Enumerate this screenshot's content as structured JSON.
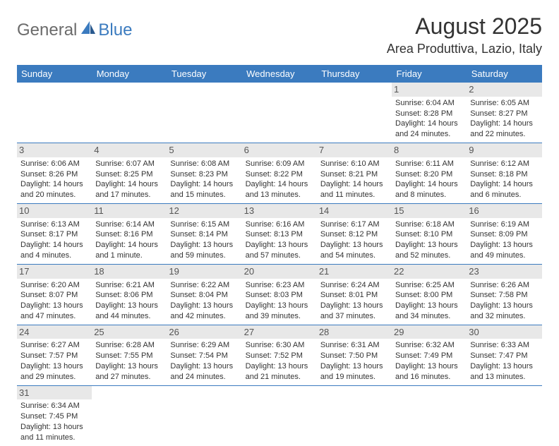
{
  "logo": {
    "general": "General",
    "blue": "Blue"
  },
  "title": "August 2025",
  "location": "Area Produttiva, Lazio, Italy",
  "colors": {
    "header_bg": "#3b7bbf",
    "header_text": "#ffffff",
    "daynum_bg": "#e8e8e8",
    "border": "#3b7bbf",
    "text": "#333333"
  },
  "weekdays": [
    "Sunday",
    "Monday",
    "Tuesday",
    "Wednesday",
    "Thursday",
    "Friday",
    "Saturday"
  ],
  "weeks": [
    [
      null,
      null,
      null,
      null,
      null,
      {
        "n": "1",
        "sunrise": "Sunrise: 6:04 AM",
        "sunset": "Sunset: 8:28 PM",
        "daylight": "Daylight: 14 hours and 24 minutes."
      },
      {
        "n": "2",
        "sunrise": "Sunrise: 6:05 AM",
        "sunset": "Sunset: 8:27 PM",
        "daylight": "Daylight: 14 hours and 22 minutes."
      }
    ],
    [
      {
        "n": "3",
        "sunrise": "Sunrise: 6:06 AM",
        "sunset": "Sunset: 8:26 PM",
        "daylight": "Daylight: 14 hours and 20 minutes."
      },
      {
        "n": "4",
        "sunrise": "Sunrise: 6:07 AM",
        "sunset": "Sunset: 8:25 PM",
        "daylight": "Daylight: 14 hours and 17 minutes."
      },
      {
        "n": "5",
        "sunrise": "Sunrise: 6:08 AM",
        "sunset": "Sunset: 8:23 PM",
        "daylight": "Daylight: 14 hours and 15 minutes."
      },
      {
        "n": "6",
        "sunrise": "Sunrise: 6:09 AM",
        "sunset": "Sunset: 8:22 PM",
        "daylight": "Daylight: 14 hours and 13 minutes."
      },
      {
        "n": "7",
        "sunrise": "Sunrise: 6:10 AM",
        "sunset": "Sunset: 8:21 PM",
        "daylight": "Daylight: 14 hours and 11 minutes."
      },
      {
        "n": "8",
        "sunrise": "Sunrise: 6:11 AM",
        "sunset": "Sunset: 8:20 PM",
        "daylight": "Daylight: 14 hours and 8 minutes."
      },
      {
        "n": "9",
        "sunrise": "Sunrise: 6:12 AM",
        "sunset": "Sunset: 8:18 PM",
        "daylight": "Daylight: 14 hours and 6 minutes."
      }
    ],
    [
      {
        "n": "10",
        "sunrise": "Sunrise: 6:13 AM",
        "sunset": "Sunset: 8:17 PM",
        "daylight": "Daylight: 14 hours and 4 minutes."
      },
      {
        "n": "11",
        "sunrise": "Sunrise: 6:14 AM",
        "sunset": "Sunset: 8:16 PM",
        "daylight": "Daylight: 14 hours and 1 minute."
      },
      {
        "n": "12",
        "sunrise": "Sunrise: 6:15 AM",
        "sunset": "Sunset: 8:14 PM",
        "daylight": "Daylight: 13 hours and 59 minutes."
      },
      {
        "n": "13",
        "sunrise": "Sunrise: 6:16 AM",
        "sunset": "Sunset: 8:13 PM",
        "daylight": "Daylight: 13 hours and 57 minutes."
      },
      {
        "n": "14",
        "sunrise": "Sunrise: 6:17 AM",
        "sunset": "Sunset: 8:12 PM",
        "daylight": "Daylight: 13 hours and 54 minutes."
      },
      {
        "n": "15",
        "sunrise": "Sunrise: 6:18 AM",
        "sunset": "Sunset: 8:10 PM",
        "daylight": "Daylight: 13 hours and 52 minutes."
      },
      {
        "n": "16",
        "sunrise": "Sunrise: 6:19 AM",
        "sunset": "Sunset: 8:09 PM",
        "daylight": "Daylight: 13 hours and 49 minutes."
      }
    ],
    [
      {
        "n": "17",
        "sunrise": "Sunrise: 6:20 AM",
        "sunset": "Sunset: 8:07 PM",
        "daylight": "Daylight: 13 hours and 47 minutes."
      },
      {
        "n": "18",
        "sunrise": "Sunrise: 6:21 AM",
        "sunset": "Sunset: 8:06 PM",
        "daylight": "Daylight: 13 hours and 44 minutes."
      },
      {
        "n": "19",
        "sunrise": "Sunrise: 6:22 AM",
        "sunset": "Sunset: 8:04 PM",
        "daylight": "Daylight: 13 hours and 42 minutes."
      },
      {
        "n": "20",
        "sunrise": "Sunrise: 6:23 AM",
        "sunset": "Sunset: 8:03 PM",
        "daylight": "Daylight: 13 hours and 39 minutes."
      },
      {
        "n": "21",
        "sunrise": "Sunrise: 6:24 AM",
        "sunset": "Sunset: 8:01 PM",
        "daylight": "Daylight: 13 hours and 37 minutes."
      },
      {
        "n": "22",
        "sunrise": "Sunrise: 6:25 AM",
        "sunset": "Sunset: 8:00 PM",
        "daylight": "Daylight: 13 hours and 34 minutes."
      },
      {
        "n": "23",
        "sunrise": "Sunrise: 6:26 AM",
        "sunset": "Sunset: 7:58 PM",
        "daylight": "Daylight: 13 hours and 32 minutes."
      }
    ],
    [
      {
        "n": "24",
        "sunrise": "Sunrise: 6:27 AM",
        "sunset": "Sunset: 7:57 PM",
        "daylight": "Daylight: 13 hours and 29 minutes."
      },
      {
        "n": "25",
        "sunrise": "Sunrise: 6:28 AM",
        "sunset": "Sunset: 7:55 PM",
        "daylight": "Daylight: 13 hours and 27 minutes."
      },
      {
        "n": "26",
        "sunrise": "Sunrise: 6:29 AM",
        "sunset": "Sunset: 7:54 PM",
        "daylight": "Daylight: 13 hours and 24 minutes."
      },
      {
        "n": "27",
        "sunrise": "Sunrise: 6:30 AM",
        "sunset": "Sunset: 7:52 PM",
        "daylight": "Daylight: 13 hours and 21 minutes."
      },
      {
        "n": "28",
        "sunrise": "Sunrise: 6:31 AM",
        "sunset": "Sunset: 7:50 PM",
        "daylight": "Daylight: 13 hours and 19 minutes."
      },
      {
        "n": "29",
        "sunrise": "Sunrise: 6:32 AM",
        "sunset": "Sunset: 7:49 PM",
        "daylight": "Daylight: 13 hours and 16 minutes."
      },
      {
        "n": "30",
        "sunrise": "Sunrise: 6:33 AM",
        "sunset": "Sunset: 7:47 PM",
        "daylight": "Daylight: 13 hours and 13 minutes."
      }
    ],
    [
      {
        "n": "31",
        "sunrise": "Sunrise: 6:34 AM",
        "sunset": "Sunset: 7:45 PM",
        "daylight": "Daylight: 13 hours and 11 minutes."
      },
      null,
      null,
      null,
      null,
      null,
      null
    ]
  ]
}
